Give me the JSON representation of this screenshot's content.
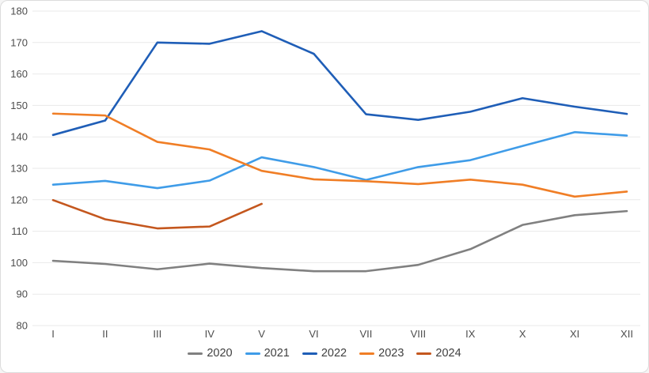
{
  "chart_data": {
    "type": "line",
    "title": "",
    "xlabel": "",
    "ylabel": "",
    "categories": [
      "I",
      "II",
      "III",
      "IV",
      "V",
      "VI",
      "VII",
      "VIII",
      "IX",
      "X",
      "XI",
      "XII"
    ],
    "series": [
      {
        "name": "2020",
        "color": "#808080",
        "values": [
          100.6,
          99.6,
          97.9,
          99.7,
          98.3,
          97.3,
          97.3,
          99.3,
          104.3,
          112.0,
          115.1,
          116.4
        ]
      },
      {
        "name": "2021",
        "color": "#3f9ce8",
        "values": [
          124.8,
          126.0,
          123.7,
          126.1,
          133.5,
          130.4,
          126.3,
          130.4,
          132.6,
          137.1,
          141.5,
          140.4
        ]
      },
      {
        "name": "2022",
        "color": "#1f5eb7",
        "values": [
          140.6,
          145.2,
          170.0,
          169.6,
          173.6,
          166.4,
          147.2,
          145.4,
          148.0,
          152.3,
          149.6,
          147.3
        ]
      },
      {
        "name": "2023",
        "color": "#f07e26",
        "values": [
          147.4,
          146.8,
          138.4,
          136.0,
          129.2,
          126.5,
          125.9,
          125.0,
          126.4,
          124.8,
          121.0,
          122.6
        ]
      },
      {
        "name": "2024",
        "color": "#c4571e",
        "values": [
          119.9,
          113.8,
          110.9,
          111.5,
          118.7
        ]
      }
    ],
    "ylim": [
      80,
      180
    ],
    "yticks": [
      "80",
      "90",
      "100",
      "110",
      "120",
      "130",
      "140",
      "150",
      "160",
      "170",
      "180"
    ],
    "grid": true,
    "legend_position": "bottom"
  },
  "style": {
    "background": "#ffffff",
    "card_border": "#dcdcdc",
    "gridline_color": "#e9e9e9",
    "tick_text_color": "#4d4d4d",
    "legend_text_color": "#3f3f3f"
  }
}
